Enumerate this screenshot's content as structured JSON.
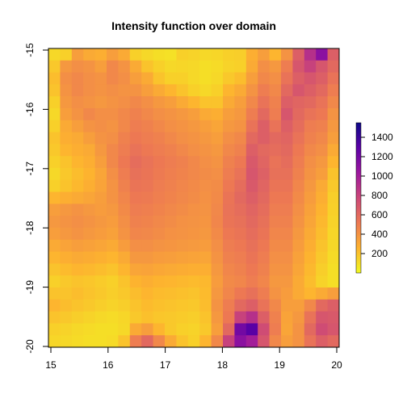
{
  "chart_data": {
    "type": "heatmap",
    "title": "Intensity function over domain",
    "xlabel": "",
    "ylabel": "",
    "xlim": [
      15,
      20
    ],
    "ylim": [
      -20,
      -15
    ],
    "x_ticks": [
      "15",
      "16",
      "17",
      "18",
      "19",
      "20"
    ],
    "y_ticks": [
      "-15",
      "-16",
      "-17",
      "-18",
      "-19",
      "-20"
    ],
    "legend": {
      "placement": "right",
      "ticks": [
        "200",
        "400",
        "600",
        "800",
        "1000",
        "1200",
        "1400"
      ],
      "range": [
        0,
        1550
      ]
    },
    "color_stops": [
      "#f0f921",
      "#fdb32f",
      "#ed7953",
      "#cc4778",
      "#9c179e",
      "#5c01a6",
      "#0d0887"
    ],
    "grid": {
      "columns": 25,
      "rows": 25,
      "x_start": 15,
      "x_end": 20,
      "y_start": -15,
      "y_end": -20,
      "values": [
        [
          120,
          150,
          350,
          300,
          280,
          350,
          300,
          150,
          120,
          100,
          90,
          150,
          140,
          120,
          130,
          150,
          160,
          280,
          350,
          250,
          400,
          650,
          900,
          1100,
          650
        ],
        [
          180,
          380,
          420,
          400,
          350,
          450,
          400,
          300,
          200,
          150,
          120,
          130,
          120,
          100,
          110,
          140,
          150,
          300,
          420,
          380,
          500,
          700,
          800,
          700,
          600
        ],
        [
          220,
          420,
          450,
          420,
          400,
          450,
          420,
          350,
          300,
          200,
          150,
          150,
          120,
          100,
          120,
          180,
          220,
          350,
          450,
          420,
          550,
          650,
          700,
          650,
          550
        ],
        [
          200,
          400,
          450,
          420,
          400,
          420,
          400,
          400,
          350,
          300,
          250,
          200,
          150,
          120,
          150,
          250,
          300,
          400,
          500,
          450,
          600,
          700,
          650,
          600,
          500
        ],
        [
          150,
          380,
          420,
          400,
          380,
          400,
          420,
          450,
          420,
          380,
          350,
          300,
          250,
          200,
          200,
          300,
          350,
          450,
          550,
          480,
          650,
          620,
          600,
          550,
          450
        ],
        [
          120,
          350,
          400,
          450,
          420,
          420,
          450,
          480,
          450,
          420,
          400,
          380,
          350,
          300,
          280,
          350,
          380,
          500,
          600,
          500,
          700,
          600,
          550,
          520,
          400
        ],
        [
          150,
          300,
          350,
          400,
          420,
          400,
          450,
          500,
          480,
          450,
          420,
          400,
          380,
          350,
          320,
          380,
          400,
          550,
          650,
          550,
          650,
          580,
          500,
          480,
          380
        ],
        [
          200,
          280,
          300,
          350,
          400,
          420,
          480,
          520,
          500,
          480,
          450,
          420,
          400,
          380,
          350,
          420,
          450,
          600,
          650,
          600,
          620,
          550,
          480,
          450,
          350
        ],
        [
          180,
          250,
          280,
          300,
          380,
          450,
          500,
          550,
          520,
          500,
          480,
          450,
          420,
          400,
          380,
          450,
          480,
          650,
          600,
          580,
          600,
          520,
          450,
          420,
          300
        ],
        [
          150,
          200,
          250,
          280,
          350,
          450,
          520,
          580,
          550,
          520,
          500,
          480,
          450,
          420,
          400,
          480,
          520,
          680,
          620,
          550,
          580,
          500,
          420,
          380,
          250
        ],
        [
          120,
          180,
          220,
          260,
          320,
          420,
          500,
          560,
          540,
          510,
          490,
          470,
          450,
          430,
          420,
          500,
          550,
          700,
          640,
          560,
          560,
          480,
          400,
          350,
          200
        ],
        [
          150,
          200,
          240,
          280,
          330,
          400,
          480,
          540,
          530,
          500,
          480,
          460,
          440,
          420,
          430,
          520,
          580,
          680,
          620,
          540,
          540,
          460,
          380,
          300,
          180
        ],
        [
          250,
          280,
          300,
          320,
          350,
          400,
          460,
          520,
          510,
          490,
          470,
          450,
          430,
          410,
          440,
          540,
          600,
          650,
          600,
          520,
          520,
          440,
          360,
          280,
          160
        ],
        [
          350,
          380,
          400,
          380,
          360,
          380,
          440,
          500,
          490,
          470,
          450,
          430,
          410,
          400,
          450,
          550,
          580,
          620,
          580,
          500,
          500,
          420,
          340,
          260,
          150
        ],
        [
          380,
          400,
          420,
          400,
          380,
          360,
          420,
          480,
          470,
          450,
          430,
          410,
          400,
          390,
          460,
          540,
          560,
          600,
          560,
          480,
          480,
          400,
          320,
          240,
          140
        ],
        [
          350,
          380,
          400,
          380,
          360,
          340,
          400,
          460,
          450,
          430,
          410,
          400,
          390,
          380,
          440,
          520,
          540,
          580,
          540,
          460,
          460,
          380,
          300,
          220,
          130
        ],
        [
          300,
          330,
          350,
          340,
          320,
          300,
          360,
          420,
          420,
          400,
          390,
          380,
          370,
          360,
          420,
          500,
          520,
          560,
          520,
          440,
          440,
          360,
          280,
          200,
          120
        ],
        [
          250,
          280,
          300,
          290,
          270,
          250,
          300,
          380,
          380,
          360,
          350,
          340,
          330,
          320,
          400,
          480,
          500,
          540,
          500,
          420,
          420,
          340,
          260,
          180,
          110
        ],
        [
          200,
          230,
          250,
          240,
          220,
          200,
          250,
          320,
          330,
          310,
          300,
          290,
          280,
          280,
          380,
          460,
          480,
          520,
          480,
          400,
          400,
          320,
          240,
          160,
          100
        ],
        [
          150,
          180,
          200,
          190,
          170,
          150,
          200,
          260,
          280,
          260,
          250,
          240,
          230,
          240,
          360,
          440,
          460,
          500,
          460,
          380,
          380,
          300,
          220,
          140,
          100
        ],
        [
          200,
          200,
          220,
          200,
          180,
          160,
          180,
          220,
          250,
          230,
          220,
          210,
          200,
          230,
          380,
          460,
          520,
          560,
          500,
          400,
          360,
          300,
          250,
          300,
          350
        ],
        [
          250,
          220,
          200,
          180,
          160,
          140,
          160,
          200,
          230,
          210,
          200,
          190,
          180,
          220,
          400,
          500,
          600,
          650,
          550,
          450,
          350,
          350,
          450,
          600,
          650
        ],
        [
          200,
          180,
          160,
          140,
          120,
          110,
          130,
          180,
          210,
          190,
          180,
          170,
          160,
          200,
          380,
          520,
          800,
          900,
          650,
          480,
          330,
          380,
          550,
          700,
          680
        ],
        [
          150,
          140,
          120,
          110,
          100,
          100,
          120,
          300,
          350,
          250,
          180,
          150,
          140,
          180,
          350,
          600,
          1200,
          1300,
          750,
          500,
          320,
          400,
          600,
          750,
          700
        ],
        [
          130,
          120,
          110,
          100,
          100,
          110,
          200,
          500,
          600,
          450,
          300,
          200,
          150,
          250,
          450,
          800,
          1100,
          1000,
          700,
          450,
          350,
          400,
          550,
          650,
          600
        ]
      ]
    }
  }
}
